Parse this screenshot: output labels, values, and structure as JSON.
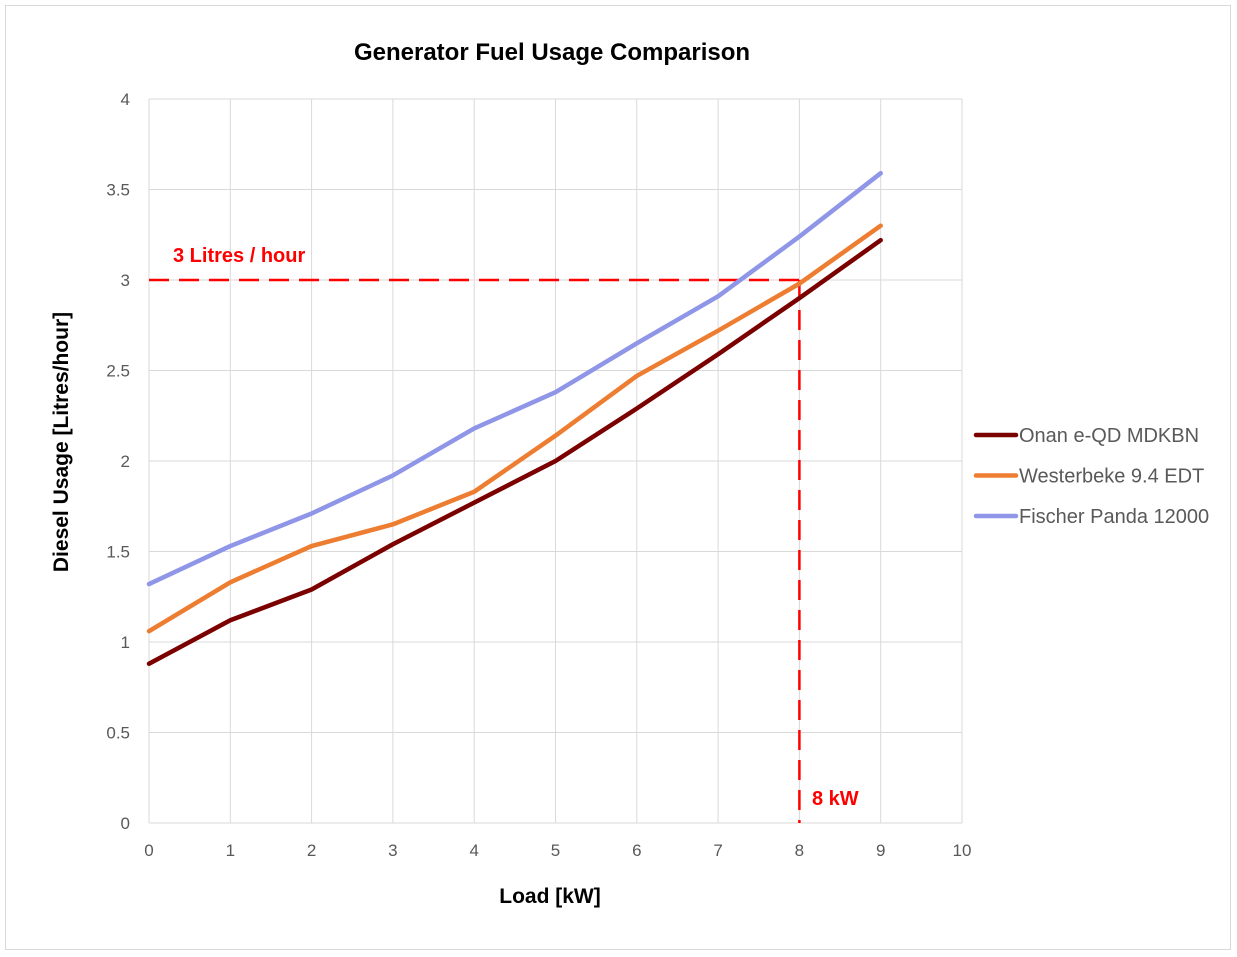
{
  "chart_data": {
    "type": "line",
    "title": "Generator Fuel Usage Comparison",
    "xlabel": "Load [kW]",
    "ylabel": "Diesel Usage [Litres/hour]",
    "xlim": [
      0,
      10
    ],
    "ylim": [
      0,
      4
    ],
    "xticks": [
      "0",
      "1",
      "2",
      "3",
      "4",
      "5",
      "6",
      "7",
      "8",
      "9",
      "10"
    ],
    "yticks": [
      "0",
      "0.5",
      "1",
      "1.5",
      "2",
      "2.5",
      "3",
      "3.5",
      "4"
    ],
    "grid": true,
    "legend_position": "right",
    "x": [
      0,
      1,
      2,
      3,
      4,
      5,
      6,
      7,
      8,
      9
    ],
    "series": [
      {
        "name": "Onan e-QD MDKBN",
        "color": "#7b0000",
        "values": [
          0.88,
          1.12,
          1.29,
          1.54,
          1.77,
          2.0,
          2.29,
          2.59,
          2.9,
          3.22
        ]
      },
      {
        "name": "Westerbeke 9.4 EDT",
        "color": "#ed7d31",
        "values": [
          1.06,
          1.33,
          1.53,
          1.65,
          1.83,
          2.14,
          2.47,
          2.72,
          2.98,
          3.3
        ]
      },
      {
        "name": "Fischer Panda 12000",
        "color": "#8f96e8",
        "values": [
          1.32,
          1.53,
          1.71,
          1.92,
          2.18,
          2.38,
          2.65,
          2.91,
          3.24,
          3.59
        ]
      }
    ],
    "reference_lines": [
      {
        "axis": "y",
        "value": 3,
        "color": "#ff0000",
        "label": "3 Litres / hour"
      },
      {
        "axis": "x",
        "value": 8,
        "color": "#ff0000",
        "label": "8 kW"
      }
    ]
  }
}
